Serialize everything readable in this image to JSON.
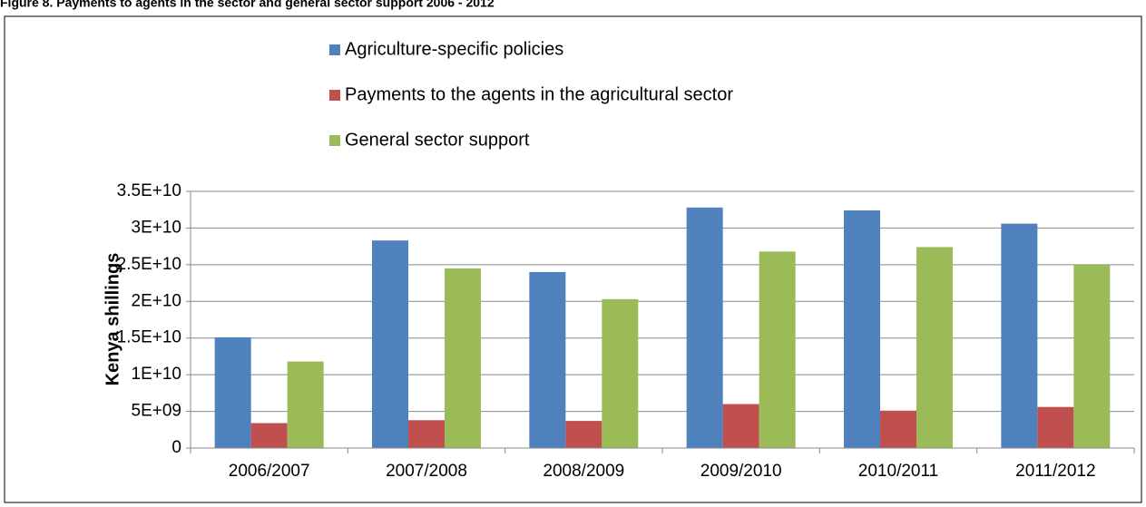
{
  "chart_data": {
    "type": "bar",
    "title": "Figure 8. Payments to agents in the sector and general sector support 2006 - 2012",
    "y_label": "Kenya  shillings",
    "categories": [
      "2006/2007",
      "2007/2008",
      "2008/2009",
      "2009/2010",
      "2010/2011",
      "2011/2012"
    ],
    "series": [
      {
        "name": "Agriculture-specific policies",
        "color": "#4f81bd",
        "values": [
          15100000000,
          28300000000,
          24000000000,
          32800000000,
          32400000000,
          30600000000
        ]
      },
      {
        "name": "Payments to the agents in the agricultural sector",
        "color": "#c0504d",
        "values": [
          3400000000,
          3800000000,
          3700000000,
          6000000000,
          5100000000,
          5600000000
        ]
      },
      {
        "name": "General sector support",
        "color": "#9bbb59",
        "values": [
          11800000000,
          24500000000,
          20300000000,
          26800000000,
          27400000000,
          25000000000
        ]
      }
    ],
    "ylim": [
      0,
      35000000000
    ],
    "yticks": [
      0,
      {
        "value": 5000000000,
        "label": "5E+09"
      },
      {
        "value": 10000000000,
        "label": "1E+10"
      },
      {
        "value": 15000000000,
        "label": "1.5E+10"
      },
      {
        "value": 20000000000,
        "label": "2E+10"
      },
      {
        "value": 25000000000,
        "label": "2.5E+10"
      },
      {
        "value": 30000000000,
        "label": "3E+10"
      },
      {
        "value": 35000000000,
        "label": "3.5E+10"
      }
    ],
    "grid": true,
    "legend": "top"
  }
}
